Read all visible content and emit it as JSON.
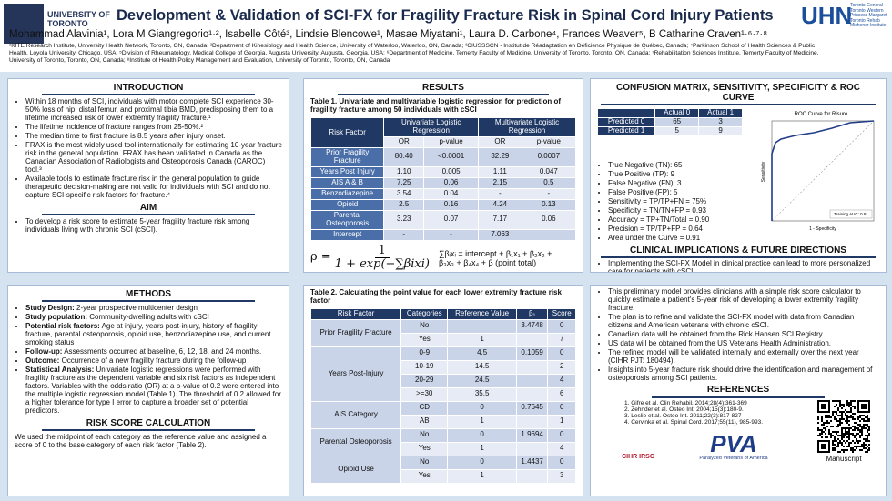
{
  "header": {
    "left_logo": "UNIVERSITY OF TORONTO",
    "title": "Development & Validation of SCI-FX for Fragility Fracture Risk in Spinal Cord Injury Patients",
    "authors": "Mohammad Alavinia¹, Lora M Giangregorio¹·², Isabelle Côté³, Lindsie Blencowe¹, Masae Miyatani¹, Laura D. Carbone⁴, Frances Weaver⁵, B Catharine Craven¹·⁶·⁷·⁸",
    "affiliations": "¹KITE Research Institute, University Health Network, Toronto, ON, Canada; ²Department of Kinesiology and Health Science, University of Waterloo, Waterloo, ON, Canada; ³CIUSSSCN - Institut de Réadaptation en Déficience Physique de Québec, Canada; ⁴Parkinson School of Health Sciences & Public Health, Loyola University, Chicago, USA; ⁵Division of Rheumatology, Medical College of Georgia, Augusta University, Augusta, Georgia, USA; ⁶Department of Medicine, Temerty Faculty of Medicine, University of Toronto, Toronto, ON, Canada; ⁷Rehabilitation Sciences Institute, Temerty Faculty of Medicine, University of Toronto, Toronto, ON, Canada; ⁸Institute of Health Policy Management and Evaluation, University of Toronto, Toronto, ON, Canada",
    "right_logo": "UHN",
    "right_logo_sites": [
      "Toronto General",
      "Toronto Western",
      "Princess Margaret",
      "Toronto Rehab",
      "Michener Institute"
    ]
  },
  "introduction": {
    "heading": "INTRODUCTION",
    "bullets": [
      "Within 18 months of SCI, individuals with motor complete SCI experience 30-50% loss of hip, distal femur, and proximal tibia BMD, predisposing them to a lifetime increased risk of lower extremity fragility fracture.¹",
      "The lifetime incidence of fracture ranges from 25-50%.²",
      "The median time to first fracture is 8.5 years after injury onset.",
      "FRAX is the most widely used tool internationally for estimating 10-year fracture risk in the general population. FRAX has been validated in Canada as the Canadian Association of Radiologists and Osteoporosis Canada (CAROC) tool.³",
      "Available tools to estimate fracture risk in the general population to guide therapeutic decision-making are not valid for individuals with SCI and do not capture SCI-specific risk factors for fracture.⁴"
    ],
    "aim_heading": "AIM",
    "aim_bullets": [
      "To develop a risk score to estimate 5-year fragility fracture risk among individuals living with chronic SCI (cSCI)."
    ]
  },
  "results": {
    "heading": "RESULTS",
    "table1": {
      "title": "Table 1. Univariate and multivariable logistic regression for prediction of fragility fracture among 50 individuals with cSCI",
      "header": [
        "Risk Factor",
        "Univariate Logistic Regression",
        "Multivariate Logistic Regression"
      ],
      "subheader": [
        "OR",
        "p-value",
        "OR",
        "p-value"
      ],
      "rows": [
        [
          "Prior Fragility Fracture",
          "80.40",
          "<0.0001",
          "32.29",
          "0.0007"
        ],
        [
          "Years Post Injury",
          "1.10",
          "0.005",
          "1.11",
          "0.047"
        ],
        [
          "AIS A & B",
          "7.25",
          "0.06",
          "2.15",
          "0.5"
        ],
        [
          "Benzodiazepine",
          "3.54",
          "0.04",
          "-",
          "-"
        ],
        [
          "Opioid",
          "2.5",
          "0.16",
          "4.24",
          "0.13"
        ],
        [
          "Parental Osteoporosis",
          "3.23",
          "0.07",
          "7.17",
          "0.06"
        ],
        [
          "Intercept",
          "-",
          "-",
          "7.063",
          null
        ]
      ]
    },
    "formula": {
      "lhs": "ρ =",
      "numerator": "1",
      "denominator": "1 + exp(−∑βixi)"
    },
    "sum": "∑βᵢxᵢ = intercept + β₁x₁ + β₂x₂ + β₃x₃ + β₄x₄ + β (point total)"
  },
  "confusion": {
    "heading": "CONFUSION MATRIX, SENSITIVITY, SPECIFICITY & ROC CURVE",
    "matrix": {
      "header": [
        null,
        "Actual 0",
        "Actual 1"
      ],
      "rows": [
        [
          "Predicted 0",
          "65",
          "3"
        ],
        [
          "Predicted 1",
          "5",
          "9"
        ]
      ]
    },
    "roc": {
      "title": "ROC Curve for Risure",
      "ylabel": "Sensitivity",
      "xlabel": "1 - Specificity",
      "legend": "Training AUC: 0.91"
    },
    "metrics": [
      "True Negative (TN): 65",
      "True Positive (TP): 9",
      "False Negative (FN): 3",
      "False Positive (FP): 5",
      "Sensitivity = TP/TP+FN = 75%",
      "Specificity = TN/TN+FP = 0.93",
      "Accuracy = TP+TN/Total = 0.90",
      "Precision = TP/TP+FP = 0.64",
      "Area under the Curve = 0.91"
    ],
    "clinical_heading": "CLINICAL IMPLICATIONS & FUTURE DIRECTIONS",
    "clinical_bullets": [
      "Implementing the SCI-FX Model in clinical practice can lead to more personalized care for patients with cSCI."
    ]
  },
  "methods": {
    "heading": "METHODS",
    "bullets": [
      {
        "label": "Study Design:",
        "text": "2-year prospective multicenter design"
      },
      {
        "label": "Study population:",
        "text": "Community-dwelling adults with cSCI"
      },
      {
        "label": "Potential risk factors:",
        "text": "Age at injury, years post-injury, history of fragility fracture, parental osteoporosis, opioid use, benzodiazepine use, and current smoking status"
      },
      {
        "label": "Follow-up:",
        "text": "Assessments occurred at baseline, 6, 12, 18, and 24 months."
      },
      {
        "label": "Outcome:",
        "text": "Occurrence of a new fragility fracture during the follow-up"
      },
      {
        "label": "Statistical Analysis:",
        "text": "Univariate logistic regressions were performed with fragility fracture as the dependent variable and six risk factors as independent factors. Variables with the odds ratio (OR) at a p-value of 0.2 were entered into the multiple logistic regression model (Table 1). The threshold of 0.2 allowed for a higher tolerance for type I error to capture a broader set of potential predictors."
      }
    ],
    "score_heading": "RISK SCORE CALCULATION",
    "score_text": "We used the midpoint of each category as the reference value and assigned a score of 0 to the base category of each risk factor (Table 2)."
  },
  "table2": {
    "title": "Table 2. Calculating the point value for each lower extremity fracture risk factor",
    "header": [
      "Risk Factor",
      "Categories",
      "Reference Value",
      "β₁",
      "Score"
    ],
    "groups": [
      {
        "factor": "Prior Fragility Fracture",
        "rows": [
          [
            "No",
            null,
            "3.4748",
            "0"
          ],
          [
            "Yes",
            "1",
            null,
            "7"
          ]
        ]
      },
      {
        "factor": "Years Post-Injury",
        "rows": [
          [
            "0-9",
            "4.5",
            "0.1059",
            "0"
          ],
          [
            "10-19",
            "14.5",
            null,
            "2"
          ],
          [
            "20-29",
            "24.5",
            null,
            "4"
          ],
          [
            ">=30",
            "35.5",
            null,
            "6"
          ]
        ]
      },
      {
        "factor": "AIS Category",
        "rows": [
          [
            "CD",
            "0",
            "0.7645",
            "0"
          ],
          [
            "AB",
            "1",
            null,
            "1"
          ]
        ]
      },
      {
        "factor": "Parental Osteoporosis",
        "rows": [
          [
            "No",
            "0",
            "1.9694",
            "0"
          ],
          [
            "Yes",
            "1",
            null,
            "4"
          ]
        ]
      },
      {
        "factor": "Opioid Use",
        "rows": [
          [
            "No",
            "0",
            "1.4437",
            "0"
          ],
          [
            "Yes",
            "1",
            null,
            "3"
          ]
        ]
      }
    ]
  },
  "conclusion": {
    "bullets": [
      "This preliminary model provides clinicians with a simple risk score calculator to quickly estimate a patient's 5-year risk of developing a lower extremity fragility fracture.",
      "The plan is to refine and validate the SCI-FX model with data from Canadian citizens and American veterans with chronic cSCI.",
      "Canadian data will be obtained from the Rick Hansen SCI Registry.",
      "US data will be obtained from the US Veterans Health Administration.",
      "The refined model will be validated internally and externally over the next year (CIHR PJT: 180494).",
      "Insights into 5-year fracture risk should drive the identification and management of osteoporosis among SCI patients."
    ],
    "references_heading": "REFERENCES",
    "references": [
      "1. Gifre et al. Clin Rehabil. 2014;28(4):361-369",
      "2. Zehnder et al. Osteo Int. 2004;15(3):180-9.",
      "3. Leslie et al. Osteo Int. 2011;22(3):817-827",
      "4. Cervinka et al. Spinal Cord. 2017;55(11), 985-993."
    ],
    "cihr_logo": "CIHR IRSC",
    "pva_logo": "PVA",
    "pva_name": "Paralyzed Veterans of America",
    "qr_caption": "Manuscript"
  }
}
